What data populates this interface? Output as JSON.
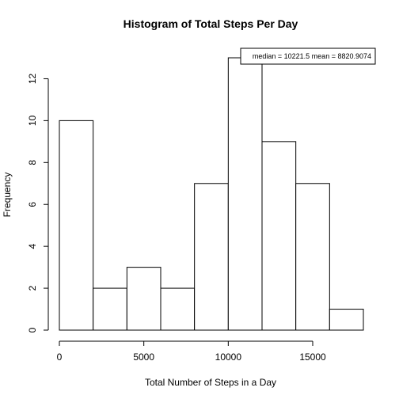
{
  "chart_data": {
    "type": "bar",
    "title": "Histogram of Total Steps Per Day",
    "xlabel": "Total Number of Steps in a Day",
    "ylabel": "Frequency",
    "bins": [
      {
        "from": 0,
        "to": 2000,
        "count": 10
      },
      {
        "from": 2000,
        "to": 4000,
        "count": 2
      },
      {
        "from": 4000,
        "to": 6000,
        "count": 3
      },
      {
        "from": 6000,
        "to": 8000,
        "count": 2
      },
      {
        "from": 8000,
        "to": 10000,
        "count": 7
      },
      {
        "from": 10000,
        "to": 12000,
        "count": 13
      },
      {
        "from": 12000,
        "to": 14000,
        "count": 9
      },
      {
        "from": 14000,
        "to": 16000,
        "count": 7
      },
      {
        "from": 16000,
        "to": 18000,
        "count": 1
      }
    ],
    "xlim": [
      0,
      18000
    ],
    "ylim": [
      0,
      13
    ],
    "xticks": [
      0,
      5000,
      10000,
      15000
    ],
    "yticks": [
      0,
      2,
      4,
      6,
      8,
      10,
      12
    ],
    "legend": {
      "text": "median = 10221.5 mean = 8820.9074",
      "position": "top-right"
    },
    "grid": false
  }
}
